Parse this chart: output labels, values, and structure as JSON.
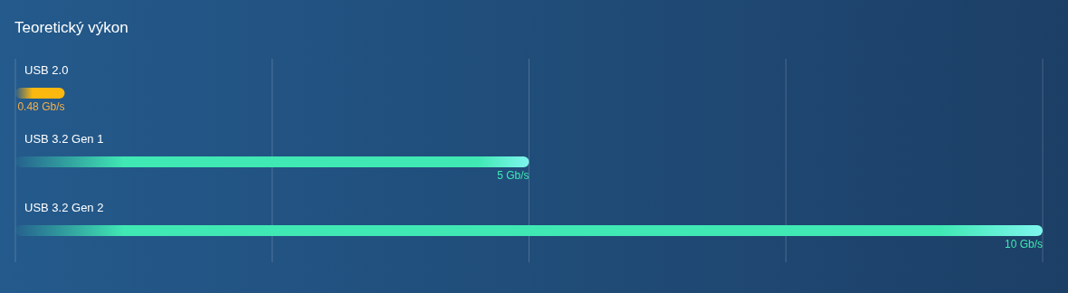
{
  "chart_data": {
    "type": "bar",
    "title": "Teoretický výkon",
    "orientation": "horizontal",
    "categories": [
      "USB 2.0",
      "USB 3.2 Gen 1",
      "USB 3.2 Gen 2"
    ],
    "values": [
      0.48,
      5,
      10
    ],
    "colors": [
      "#fbb80f",
      "#40e8b4",
      "#40e8b4"
    ],
    "value_labels": [
      "0.48 Gb/s",
      "5 Gb/s",
      "10 Gb/s"
    ],
    "grid": "x"
  }
}
